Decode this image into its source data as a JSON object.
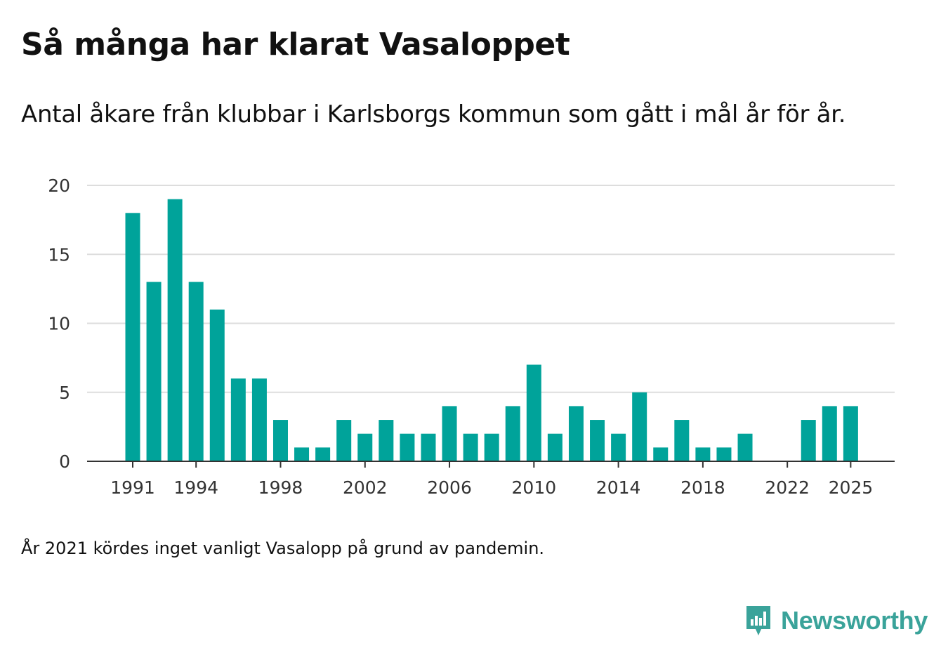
{
  "title": "Så många har klarat Vasaloppet",
  "subtitle": "Antal åkare från klubbar i Karlsborgs kommun som gått i mål år för år.",
  "footnote": "År 2021 kördes inget vanligt Vasalopp på grund av pandemin.",
  "brand": {
    "name": "Newsworthy",
    "icon": "newsworthy-logo-icon"
  },
  "colors": {
    "bar": "#00a39a",
    "grid": "#dddddd",
    "axis": "#333333",
    "text": "#333333",
    "brand": "#3aa39a"
  },
  "chart_data": {
    "type": "bar",
    "title": "Så många har klarat Vasaloppet",
    "xlabel": "",
    "ylabel": "",
    "ylim": [
      0,
      20
    ],
    "yticks": [
      0,
      5,
      10,
      15,
      20
    ],
    "xticks": [
      1991,
      1994,
      1998,
      2002,
      2006,
      2010,
      2014,
      2018,
      2022,
      2025
    ],
    "grid": true,
    "categories": [
      1991,
      1992,
      1993,
      1994,
      1995,
      1996,
      1997,
      1998,
      1999,
      2000,
      2001,
      2002,
      2003,
      2004,
      2005,
      2006,
      2007,
      2008,
      2009,
      2010,
      2011,
      2012,
      2013,
      2014,
      2015,
      2016,
      2017,
      2018,
      2019,
      2020,
      2021,
      2022,
      2023,
      2024,
      2025
    ],
    "values": [
      18,
      13,
      19,
      13,
      11,
      6,
      6,
      3,
      1,
      1,
      3,
      2,
      3,
      2,
      2,
      4,
      2,
      2,
      4,
      7,
      2,
      4,
      3,
      2,
      5,
      1,
      3,
      1,
      1,
      2,
      0,
      0,
      3,
      4,
      4
    ]
  }
}
